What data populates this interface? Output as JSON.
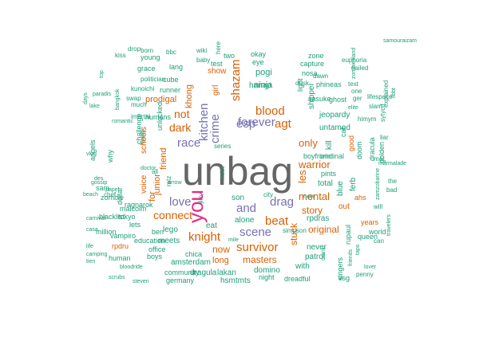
{
  "wordcloud": {
    "palette": {
      "teal": "#1b9e77",
      "orange": "#d95f02",
      "purple": "#7570b3",
      "magenta": "#e7298a",
      "grey": "#666666"
    },
    "words": [
      {
        "text": "unbag",
        "color": "#666666"
      },
      {
        "text": "you",
        "color": "#e7298a"
      },
      {
        "text": "scene",
        "color": "#7570b3"
      },
      {
        "text": "forever",
        "color": "#7570b3"
      },
      {
        "text": "and",
        "color": "#7570b3"
      },
      {
        "text": "race",
        "color": "#7570b3"
      },
      {
        "text": "love",
        "color": "#7570b3"
      },
      {
        "text": "kitchen",
        "color": "#7570b3"
      },
      {
        "text": "shazam",
        "color": "#d95f02"
      },
      {
        "text": "crime",
        "color": "#7570b3"
      },
      {
        "text": "esp",
        "color": "#7570b3"
      },
      {
        "text": "drag",
        "color": "#7570b3"
      },
      {
        "text": "blood",
        "color": "#d95f02"
      },
      {
        "text": "agt",
        "color": "#d95f02"
      },
      {
        "text": "beat",
        "color": "#d95f02"
      },
      {
        "text": "knight",
        "color": "#d95f02"
      },
      {
        "text": "survivor",
        "color": "#d95f02"
      },
      {
        "text": "connect",
        "color": "#d95f02"
      },
      {
        "text": "dark",
        "color": "#d95f02"
      },
      {
        "text": "not",
        "color": "#d95f02"
      },
      {
        "text": "mental",
        "color": "#d95f02"
      },
      {
        "text": "warrior",
        "color": "#d95f02"
      },
      {
        "text": "only",
        "color": "#d95f02"
      },
      {
        "text": "les",
        "color": "#d95f02"
      },
      {
        "text": "story",
        "color": "#d95f02"
      },
      {
        "text": "stuck",
        "color": "#d95f02"
      },
      {
        "text": "original",
        "color": "#d95f02"
      },
      {
        "text": "masters",
        "color": "#d95f02"
      },
      {
        "text": "now",
        "color": "#d95f02"
      },
      {
        "text": "long",
        "color": "#d95f02"
      },
      {
        "text": "friend",
        "color": "#d95f02"
      },
      {
        "text": "junior",
        "color": "#d95f02"
      },
      {
        "text": "for",
        "color": "#d95f02"
      },
      {
        "text": "prodigal",
        "color": "#d95f02"
      },
      {
        "text": "khong",
        "color": "#d95f02"
      },
      {
        "text": "ninja",
        "color": "#1b9e77"
      },
      {
        "text": "pogi",
        "color": "#1b9e77"
      },
      {
        "text": "hanap",
        "color": "#1b9e77"
      },
      {
        "text": "girl",
        "color": "#d95f02"
      },
      {
        "text": "show",
        "color": "#d95f02"
      },
      {
        "text": "schools",
        "color": "#d95f02"
      },
      {
        "text": "voice",
        "color": "#d95f02"
      },
      {
        "text": "lego",
        "color": "#1b9e77"
      },
      {
        "text": "eat",
        "color": "#1b9e77"
      },
      {
        "text": "son",
        "color": "#1b9e77"
      },
      {
        "text": "alone",
        "color": "#1b9e77"
      },
      {
        "text": "never",
        "color": "#1b9e77"
      },
      {
        "text": "patrol",
        "color": "#1b9e77"
      },
      {
        "text": "with",
        "color": "#1b9e77"
      },
      {
        "text": "rpdras",
        "color": "#1b9e77"
      },
      {
        "text": "amsterdam",
        "color": "#1b9e77"
      },
      {
        "text": "dragula",
        "color": "#1b9e77"
      },
      {
        "text": "lakan",
        "color": "#1b9e77"
      },
      {
        "text": "domino",
        "color": "#1b9e77"
      },
      {
        "text": "hsmtmts",
        "color": "#1b9e77"
      },
      {
        "text": "germany",
        "color": "#1b9e77"
      },
      {
        "text": "community",
        "color": "#1b9e77"
      },
      {
        "text": "boys",
        "color": "#1b9e77"
      },
      {
        "text": "office",
        "color": "#1b9e77"
      },
      {
        "text": "chica",
        "color": "#1b9e77"
      },
      {
        "text": "meets",
        "color": "#1b9e77"
      },
      {
        "text": "lets",
        "color": "#1b9e77"
      },
      {
        "text": "rpdru",
        "color": "#d95f02"
      },
      {
        "text": "human",
        "color": "#1b9e77"
      },
      {
        "text": "education",
        "color": "#1b9e77"
      },
      {
        "text": "vampiro",
        "color": "#1b9e77"
      },
      {
        "text": "ben",
        "color": "#1b9e77"
      },
      {
        "text": "million",
        "color": "#1b9e77"
      },
      {
        "text": "blacklist",
        "color": "#1b9e77"
      },
      {
        "text": "ragnarok",
        "color": "#1b9e77"
      },
      {
        "text": "zombie",
        "color": "#1b9e77"
      },
      {
        "text": "sam",
        "color": "#1b9e77"
      },
      {
        "text": "tokyo",
        "color": "#1b9e77"
      },
      {
        "text": "malcolm",
        "color": "#1b9e77"
      },
      {
        "text": "dollar",
        "color": "#1b9e77"
      },
      {
        "text": "why",
        "color": "#1b9e77"
      },
      {
        "text": "angels",
        "color": "#1b9e77"
      },
      {
        "text": "challenge",
        "color": "#1b9e77"
      },
      {
        "text": "humans",
        "color": "#1b9e77"
      },
      {
        "text": "unlocked",
        "color": "#1b9e77"
      },
      {
        "text": "runner",
        "color": "#1b9e77"
      },
      {
        "text": "cube",
        "color": "#1b9e77"
      },
      {
        "text": "lang",
        "color": "#1b9e77"
      },
      {
        "text": "young",
        "color": "#1b9e77"
      },
      {
        "text": "grace",
        "color": "#1b9e77"
      },
      {
        "text": "politician",
        "color": "#1b9e77"
      },
      {
        "text": "kunoichi",
        "color": "#1b9e77"
      },
      {
        "text": "swap",
        "color": "#1b9e77"
      },
      {
        "text": "much",
        "color": "#1b9e77"
      },
      {
        "text": "imortal",
        "color": "#1b9e77"
      },
      {
        "text": "two",
        "color": "#1b9e77"
      },
      {
        "text": "okay",
        "color": "#1b9e77"
      },
      {
        "text": "test",
        "color": "#1b9e77"
      },
      {
        "text": "eye",
        "color": "#1b9e77"
      },
      {
        "text": "zone",
        "color": "#1b9e77"
      },
      {
        "text": "capture",
        "color": "#1b9e77"
      },
      {
        "text": "nosa",
        "color": "#1b9e77"
      },
      {
        "text": "phineas",
        "color": "#1b9e77"
      },
      {
        "text": "sasuke",
        "color": "#1b9e77"
      },
      {
        "text": "jeopardy",
        "color": "#1b9e77"
      },
      {
        "text": "untamed",
        "color": "#1b9e77"
      },
      {
        "text": "shipper",
        "color": "#1b9e77"
      },
      {
        "text": "light",
        "color": "#1b9e77"
      },
      {
        "text": "ghost",
        "color": "#1b9e77"
      },
      {
        "text": "cat",
        "color": "#1b9e77"
      },
      {
        "text": "good",
        "color": "#d95f02"
      },
      {
        "text": "doom",
        "color": "#1b9e77"
      },
      {
        "text": "dracula",
        "color": "#1b9e77"
      },
      {
        "text": "golden",
        "color": "#1b9e77"
      },
      {
        "text": "boyfriend",
        "color": "#1b9e77"
      },
      {
        "text": "criminal",
        "color": "#1b9e77"
      },
      {
        "text": "pints",
        "color": "#1b9e77"
      },
      {
        "text": "total",
        "color": "#1b9e77"
      },
      {
        "text": "kill",
        "color": "#1b9e77"
      },
      {
        "text": "blue",
        "color": "#1b9e77"
      },
      {
        "text": "ferb",
        "color": "#1b9e77"
      },
      {
        "text": "ahs",
        "color": "#d95f02"
      },
      {
        "text": "out",
        "color": "#d95f02"
      },
      {
        "text": "years",
        "color": "#d95f02"
      },
      {
        "text": "world",
        "color": "#1b9e77"
      },
      {
        "text": "queen",
        "color": "#1b9e77"
      },
      {
        "text": "rupaul",
        "color": "#1b9e77"
      },
      {
        "text": "singers",
        "color": "#1b9e77"
      },
      {
        "text": "vsg",
        "color": "#1b9e77"
      },
      {
        "text": "penny",
        "color": "#1b9e77"
      },
      {
        "text": "night",
        "color": "#1b9e77"
      },
      {
        "text": "dreadful",
        "color": "#1b9e77"
      },
      {
        "text": "series",
        "color": "#1b9e77"
      },
      {
        "text": "simpson",
        "color": "#1b9e77"
      },
      {
        "text": "new",
        "color": "#1b9e77"
      },
      {
        "text": "city",
        "color": "#1b9e77"
      },
      {
        "text": "ratz",
        "color": "#1b9e77"
      },
      {
        "text": "jim",
        "color": "#1b9e77"
      },
      {
        "text": "chef",
        "color": "#1b9e77"
      },
      {
        "text": "all",
        "color": "#1b9e77"
      },
      {
        "text": "can",
        "color": "#1b9e77"
      },
      {
        "text": "will",
        "color": "#1b9e77"
      },
      {
        "text": "bad",
        "color": "#1b9e77"
      },
      {
        "text": "the",
        "color": "#1b9e77"
      },
      {
        "text": "mar",
        "color": "#1b9e77"
      },
      {
        "text": "liar",
        "color": "#1b9e77"
      },
      {
        "text": "ger",
        "color": "#1b9e77"
      },
      {
        "text": "one",
        "color": "#1b9e77"
      },
      {
        "text": "text",
        "color": "#1b9e77"
      },
      {
        "text": "nailed",
        "color": "#1b9e77"
      },
      {
        "text": "euphoria",
        "color": "#1b9e77"
      },
      {
        "text": "explained",
        "color": "#1b9e77"
      },
      {
        "text": "lifespace",
        "color": "#1b9e77"
      },
      {
        "text": "slam",
        "color": "#1b9e77"
      },
      {
        "text": "sytycd",
        "color": "#1b9e77"
      },
      {
        "text": "himym",
        "color": "#1b9e77"
      },
      {
        "text": "dawn",
        "color": "#1b9e77"
      },
      {
        "text": "dusk",
        "color": "#1b9e77"
      },
      {
        "text": "wiki",
        "color": "#1b9e77"
      },
      {
        "text": "here",
        "color": "#1b9e77"
      },
      {
        "text": "bbc",
        "color": "#1b9e77"
      },
      {
        "text": "born",
        "color": "#1b9e77"
      },
      {
        "text": "drop",
        "color": "#1b9e77"
      },
      {
        "text": "kiss",
        "color": "#1b9e77"
      },
      {
        "text": "baby",
        "color": "#1b9e77"
      },
      {
        "text": "paradis",
        "color": "#1b9e77"
      },
      {
        "text": "lake",
        "color": "#1b9e77"
      },
      {
        "text": "romantic",
        "color": "#1b9e77"
      },
      {
        "text": "des",
        "color": "#1b9e77"
      },
      {
        "text": "gossip",
        "color": "#1b9e77"
      },
      {
        "text": "papel",
        "color": "#1b9e77"
      },
      {
        "text": "beach",
        "color": "#1b9e77"
      },
      {
        "text": "carnival",
        "color": "#1b9e77"
      },
      {
        "text": "casa",
        "color": "#1b9e77"
      },
      {
        "text": "life",
        "color": "#1b9e77"
      },
      {
        "text": "camping",
        "color": "#1b9e77"
      },
      {
        "text": "tien",
        "color": "#1b9e77"
      },
      {
        "text": "bloodride",
        "color": "#1b9e77"
      },
      {
        "text": "scrubs",
        "color": "#1b9e77"
      },
      {
        "text": "steven",
        "color": "#1b9e77"
      },
      {
        "text": "vlog",
        "color": "#1b9e77"
      },
      {
        "text": "days",
        "color": "#1b9e77"
      },
      {
        "text": "top",
        "color": "#1b9e77"
      },
      {
        "text": "bangkok",
        "color": "#1b9e77"
      },
      {
        "text": "libbt",
        "color": "#1b9e77"
      },
      {
        "text": "travelers",
        "color": "#1b9e77"
      },
      {
        "text": "samouraizam",
        "color": "#1b9e77"
      },
      {
        "text": "zombiesland",
        "color": "#1b9e77"
      },
      {
        "text": "marmalade",
        "color": "#1b9e77"
      },
      {
        "text": "zamzobarine",
        "color": "#1b9e77"
      },
      {
        "text": "friends",
        "color": "#1b9e77"
      },
      {
        "text": "taps",
        "color": "#1b9e77"
      },
      {
        "text": "crank",
        "color": "#1b9e77"
      },
      {
        "text": "elite",
        "color": "#1b9e77"
      },
      {
        "text": "family",
        "color": "#1b9e77"
      },
      {
        "text": "doctor",
        "color": "#1b9e77"
      },
      {
        "text": "arrow",
        "color": "#1b9e77"
      },
      {
        "text": "inside",
        "color": "#1b9e77"
      },
      {
        "text": "mile",
        "color": "#1b9e77"
      },
      {
        "text": "lover",
        "color": "#1b9e77"
      },
      {
        "text": "dare",
        "color": "#1b9e77"
      },
      {
        "text": "modern",
        "color": "#1b9e77"
      },
      {
        "text": "tale",
        "color": "#1b9e77"
      },
      {
        "text": "sex",
        "color": "#1b9e77"
      },
      {
        "text": "lot",
        "color": "#1b9e77"
      },
      {
        "text": "hirs",
        "color": "#1b9e77"
      }
    ]
  }
}
